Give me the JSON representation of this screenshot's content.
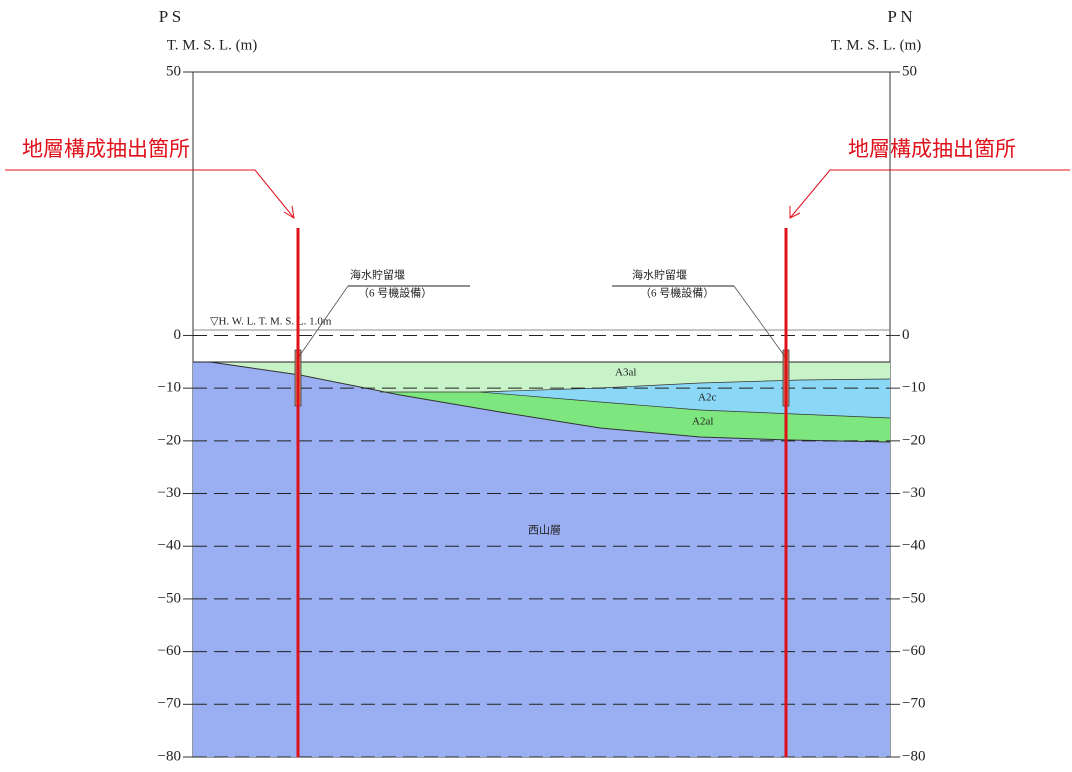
{
  "left": {
    "title": "P S",
    "unit": "T. M. S. L.  (m)"
  },
  "right": {
    "title": "P N",
    "unit": "T. M. S. L.  (m)"
  },
  "axis": {
    "ylim": [
      -80,
      50
    ],
    "yticks": [
      50,
      0,
      {
        "value": -10,
        "label": "−10"
      },
      {
        "value": -20,
        "label": "−20"
      },
      {
        "value": -30,
        "label": "−30"
      },
      {
        "value": -40,
        "label": "−40"
      },
      {
        "value": -50,
        "label": "−50"
      },
      {
        "value": -60,
        "label": "−60"
      },
      {
        "value": -70,
        "label": "−70"
      },
      {
        "value": -80,
        "label": "−80"
      }
    ]
  },
  "callouts": [
    "地層構成抽出箇所",
    "地層構成抽出箇所"
  ],
  "hwl": "▽H. W. L.   T. M. S. L. 1.0m",
  "structures": [
    {
      "name": "海水貯留堰",
      "note": "（6 号機設備）"
    },
    {
      "name": "海水貯留堰",
      "note": "（6 号機設備）"
    }
  ],
  "layers": [
    "A3al",
    "A2c",
    "A2al",
    "西山層"
  ]
}
